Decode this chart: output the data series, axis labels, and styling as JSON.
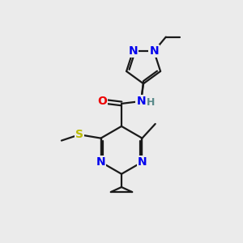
{
  "bg_color": "#ebebeb",
  "bond_color": "#1a1a1a",
  "N_color": "#0000ee",
  "O_color": "#ee0000",
  "S_color": "#bbbb00",
  "H_color": "#5a8a8a",
  "C_color": "#1a1a1a",
  "line_width": 1.6,
  "font_size_atom": 10,
  "xlim": [
    0,
    10
  ],
  "ylim": [
    0,
    10
  ]
}
